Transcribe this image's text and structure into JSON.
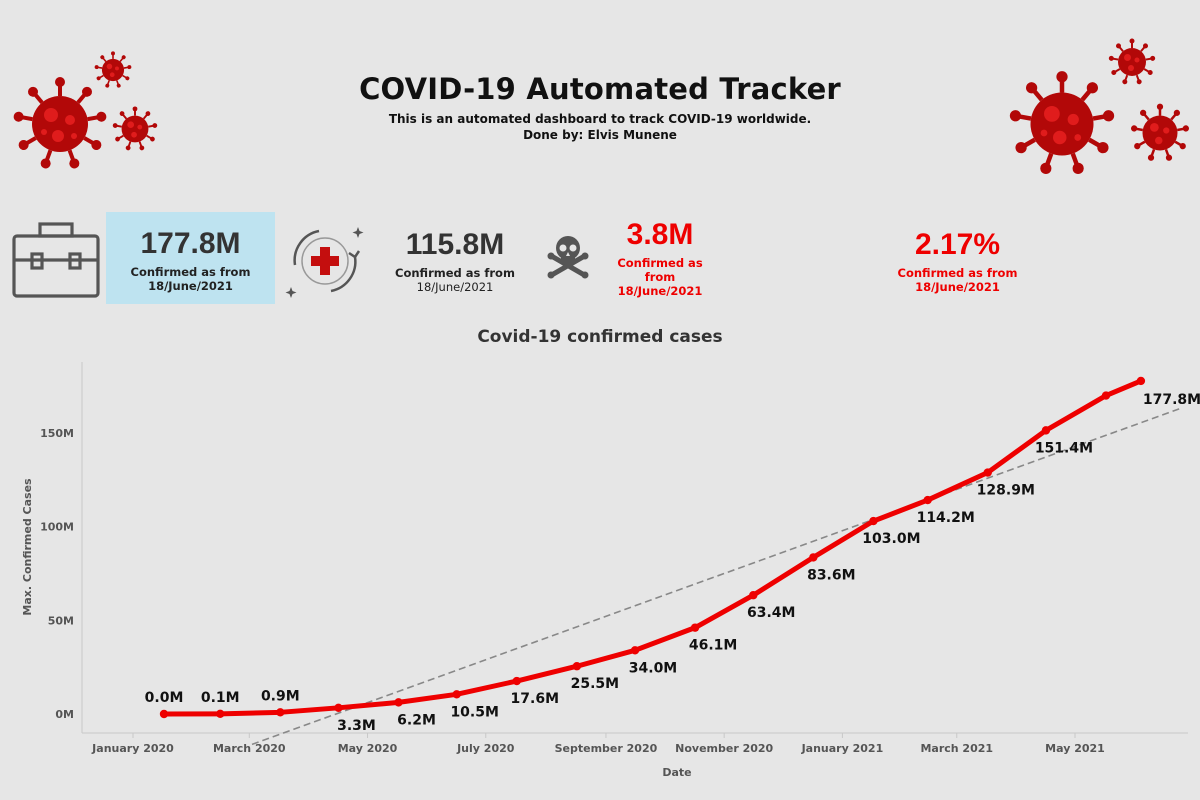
{
  "header": {
    "title": "COVID-19 Automated Tracker",
    "subtitle": "This is an automated dashboard to track COVID-19 worldwide.",
    "byline": "Done by: Elvis Munene"
  },
  "kpis": [
    {
      "value": "177.8M",
      "label1": "Confirmed as from",
      "label2": "18/June/2021",
      "icon": "briefcase-icon"
    },
    {
      "value": "115.8M",
      "label1": "Confirmed as from",
      "label2": "18/June/2021",
      "icon": "medical-cross-icon"
    },
    {
      "value": "3.8M",
      "label1": "Confirmed as",
      "label1b": "from",
      "label2": "18/June/2021",
      "icon": "skull-crossbones-icon"
    },
    {
      "value": "2.17%",
      "label1": "Confirmed as from",
      "label2": "18/June/2021"
    }
  ],
  "colors": {
    "series": "#ee0000",
    "trend": "#888888",
    "kpi_highlight": "#bee3f0",
    "alert": "#ee0000"
  },
  "chart_data": {
    "type": "line",
    "title": "Covid-19 confirmed cases",
    "xlabel": "Date",
    "ylabel": "Max. Confirmed Cases",
    "ylim": [
      -10,
      190
    ],
    "y_unit": "M",
    "yticks": [
      0,
      50,
      100,
      150
    ],
    "ytick_labels": [
      "0M",
      "50M",
      "100M",
      "150M"
    ],
    "xtick_labels": [
      "January 2020",
      "March 2020",
      "May 2020",
      "July 2020",
      "September 2020",
      "November 2020",
      "January 2021",
      "March 2021",
      "May 2021"
    ],
    "grid": false,
    "series": [
      {
        "x": [
          "2020-01-31",
          "2020-02-29",
          "2020-03-31",
          "2020-04-30",
          "2020-05-31",
          "2020-06-30",
          "2020-07-31",
          "2020-08-31",
          "2020-09-30",
          "2020-10-31",
          "2020-11-30",
          "2020-12-31",
          "2021-01-31",
          "2021-02-28",
          "2021-03-31",
          "2021-04-30",
          "2021-05-31",
          "2021-06-18"
        ],
        "values": [
          0.0,
          0.1,
          0.9,
          3.3,
          6.2,
          10.5,
          17.6,
          25.5,
          34.0,
          46.1,
          63.4,
          83.6,
          103.0,
          114.2,
          128.9,
          151.4,
          170.0,
          177.8
        ],
        "labels": [
          "0.0M",
          "0.1M",
          "0.9M",
          "3.3M",
          "6.2M",
          "10.5M",
          "17.6M",
          "25.5M",
          "34.0M",
          "46.1M",
          "63.4M",
          "83.6M",
          "103.0M",
          "114.2M",
          "128.9M",
          "151.4M",
          "",
          "177.8M"
        ]
      }
    ],
    "trendline": {
      "style": "dashed"
    }
  }
}
